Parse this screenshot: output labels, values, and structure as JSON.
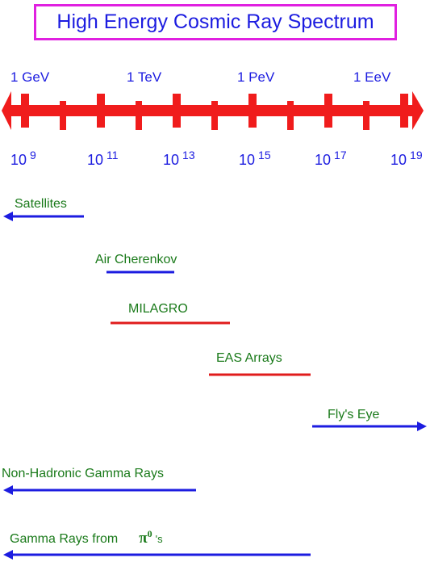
{
  "title": "High Energy Cosmic Ray Spectrum",
  "energy_labels": [
    "1 GeV",
    "1 TeV",
    "1 PeV",
    "1 EeV"
  ],
  "power_labels": [
    {
      "base": "10",
      "exp": "9"
    },
    {
      "base": "10",
      "exp": "11"
    },
    {
      "base": "10",
      "exp": "13"
    },
    {
      "base": "10",
      "exp": "15"
    },
    {
      "base": "10",
      "exp": "17"
    },
    {
      "base": "10",
      "exp": "19"
    }
  ],
  "instruments": [
    {
      "label": "Satellites",
      "log_eV_range": [
        9,
        11
      ],
      "open_low": true,
      "color": "#1c1ce0"
    },
    {
      "label": "Air Cherenkov",
      "log_eV_range": [
        11.5,
        13
      ],
      "color": "#1c1ce0"
    },
    {
      "label": "MILAGRO",
      "log_eV_range": [
        11.6,
        14.4
      ],
      "color": "#e01c1c"
    },
    {
      "label": "EAS Arrays",
      "log_eV_range": [
        14.2,
        16.8
      ],
      "color": "#e01c1c"
    },
    {
      "label": "Fly's Eye",
      "log_eV_range": [
        17,
        19
      ],
      "open_high": true,
      "color": "#1c1ce0"
    },
    {
      "label": "Non-Hadronic Gamma Rays",
      "log_eV_range": [
        9,
        14.1
      ],
      "open_low": true,
      "color": "#1c1ce0"
    },
    {
      "label": "Gamma Rays from",
      "symbol": "π",
      "symbol_sup": "0",
      "suffix": "'s",
      "log_eV_range": [
        9,
        16.8
      ],
      "open_low": true,
      "color": "#1c1ce0"
    }
  ],
  "colors": {
    "axis": "#f01c1c",
    "title_border": "#e020e0",
    "text_blue": "#1c1ce0",
    "text_green": "#1a7a1a"
  }
}
